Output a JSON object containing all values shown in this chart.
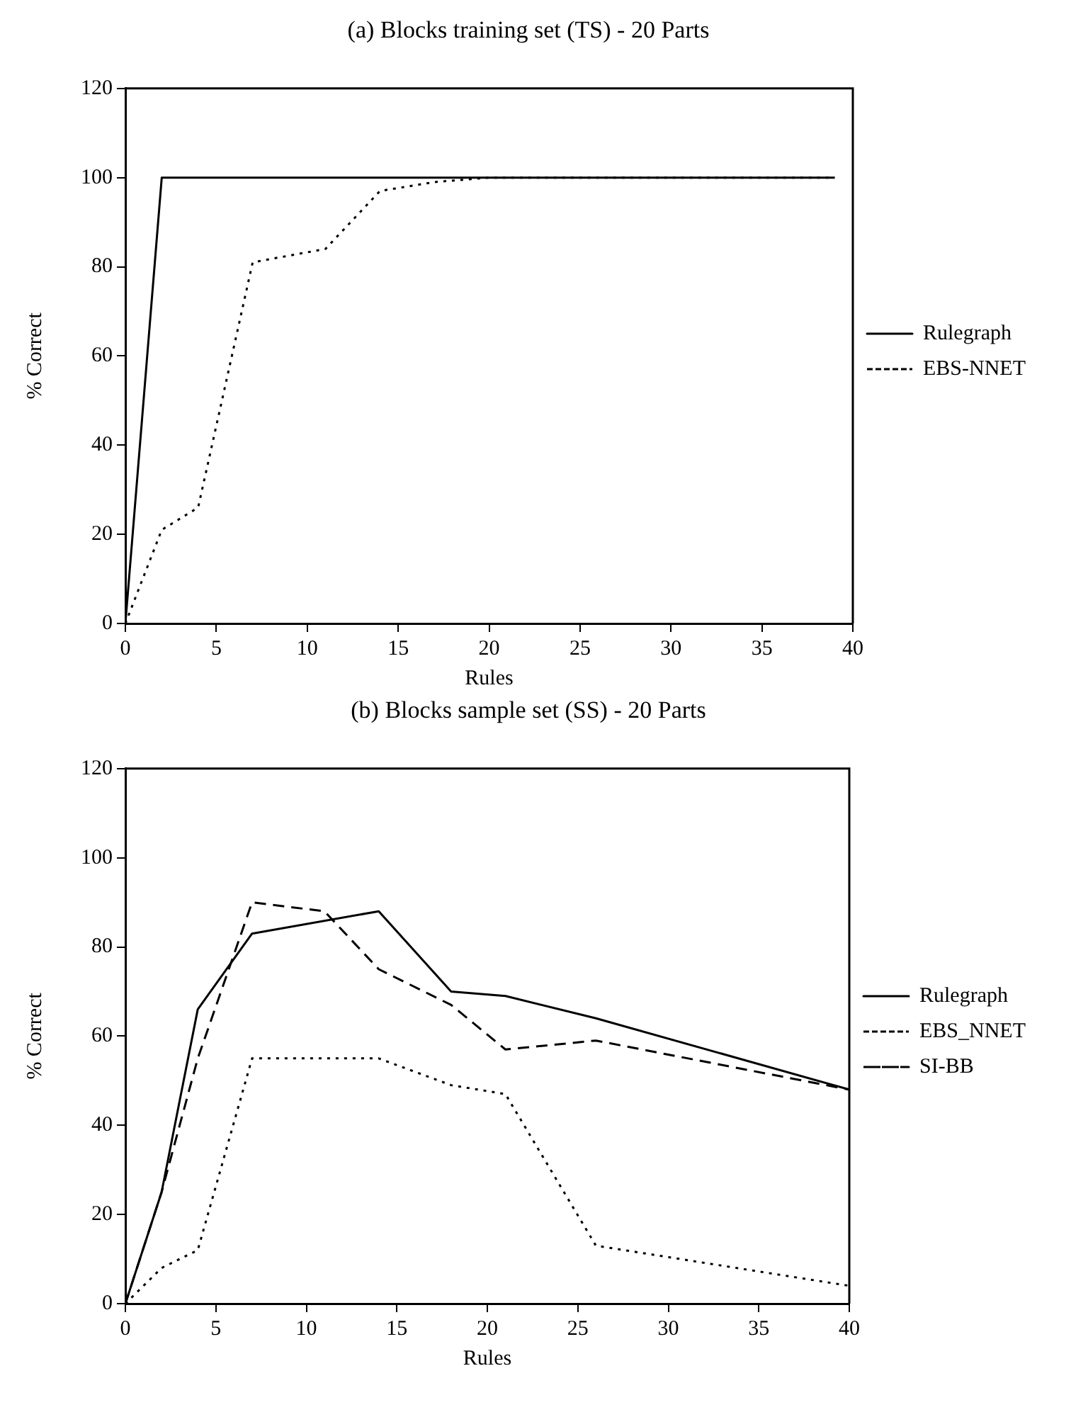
{
  "chart_data": [
    {
      "type": "line",
      "title": "(a) Blocks training set (TS) - 20 Parts",
      "xlabel": "Rules",
      "ylabel": "% Correct",
      "xlim": [
        0,
        40
      ],
      "xticks": [
        0,
        5,
        10,
        15,
        20,
        25,
        30,
        35,
        40
      ],
      "ylim": [
        0,
        120
      ],
      "yticks": [
        0,
        20,
        40,
        60,
        80,
        100,
        120
      ],
      "grid": false,
      "legend": "right",
      "marker": "none",
      "series": [
        {
          "name": "Rulegraph",
          "color": "#000000",
          "line_style": "solid",
          "x": [
            0,
            2,
            39
          ],
          "values": [
            0,
            100,
            100
          ]
        },
        {
          "name": "EBS-NNET",
          "color": "#000000",
          "line_style": "dotted",
          "x": [
            0,
            2,
            4,
            7,
            11,
            14,
            17,
            20,
            39
          ],
          "values": [
            0,
            21,
            26,
            81,
            84,
            97,
            99,
            100,
            100
          ]
        }
      ]
    },
    {
      "type": "line",
      "title": "(b) Blocks sample set (SS) - 20 Parts",
      "xlabel": "Rules",
      "ylabel": "% Correct",
      "xlim": [
        0,
        40
      ],
      "xticks": [
        0,
        5,
        10,
        15,
        20,
        25,
        30,
        35,
        40
      ],
      "ylim": [
        0,
        120
      ],
      "yticks": [
        0,
        20,
        40,
        60,
        80,
        100,
        120
      ],
      "grid": false,
      "legend": "right",
      "marker": "none",
      "series": [
        {
          "name": "Rulegraph",
          "color": "#000000",
          "line_style": "solid",
          "x": [
            0,
            2,
            4,
            7,
            14,
            18,
            21,
            26,
            40
          ],
          "values": [
            0,
            25,
            66,
            83,
            88,
            70,
            69,
            64,
            48
          ]
        },
        {
          "name": "EBS_NNET",
          "color": "#000000",
          "line_style": "dotted",
          "x": [
            0,
            2,
            4,
            7,
            14,
            18,
            21,
            26,
            40
          ],
          "values": [
            0,
            8,
            12,
            55,
            55,
            49,
            47,
            13,
            4
          ]
        },
        {
          "name": "SI-BB",
          "color": "#000000",
          "line_style": "dashed",
          "x": [
            0,
            2,
            4,
            7,
            11,
            14,
            18,
            21,
            26,
            40
          ],
          "values": [
            0,
            25,
            55,
            90,
            88,
            75,
            67,
            57,
            59,
            48
          ]
        }
      ]
    }
  ]
}
